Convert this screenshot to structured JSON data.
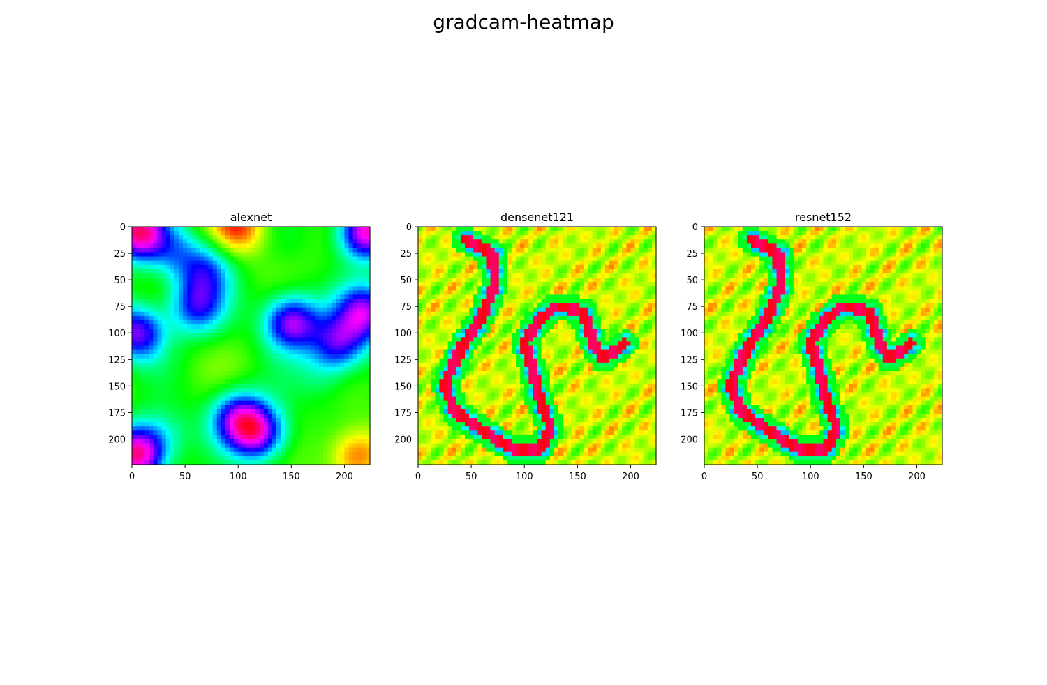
{
  "suptitle": "gradcam-heatmap",
  "chart_data": [
    {
      "type": "heatmap",
      "title": "alexnet",
      "xlim": [
        0,
        224
      ],
      "ylim": [
        224,
        0
      ],
      "xticks": [
        0,
        50,
        100,
        150,
        200
      ],
      "yticks": [
        0,
        25,
        50,
        75,
        100,
        125,
        150,
        175,
        200
      ],
      "colormap": "hsv",
      "grid": false,
      "hotspots": [
        {
          "x": 5,
          "y": 5,
          "v": 0.9
        },
        {
          "x": 220,
          "y": 5,
          "v": 0.88
        },
        {
          "x": 5,
          "y": 100,
          "v": 0.75
        },
        {
          "x": 220,
          "y": 80,
          "v": 0.75
        },
        {
          "x": 60,
          "y": 75,
          "v": 0.65
        },
        {
          "x": 70,
          "y": 40,
          "v": 0.58
        },
        {
          "x": 150,
          "y": 90,
          "v": 0.8
        },
        {
          "x": 195,
          "y": 110,
          "v": 0.68
        },
        {
          "x": 100,
          "y": 180,
          "v": 0.7
        },
        {
          "x": 120,
          "y": 195,
          "v": 0.75
        },
        {
          "x": 100,
          "y": 0,
          "v": 0.05
        },
        {
          "x": 210,
          "y": 215,
          "v": 0.05
        },
        {
          "x": 5,
          "y": 215,
          "v": 0.9
        },
        {
          "x": 30,
          "y": 195,
          "v": 0.45
        },
        {
          "x": 180,
          "y": 140,
          "v": 0.4
        },
        {
          "x": 40,
          "y": 25,
          "v": 0.48
        }
      ]
    },
    {
      "type": "heatmap",
      "title": "densenet121",
      "xlim": [
        0,
        224
      ],
      "ylim": [
        224,
        0
      ],
      "xticks": [
        0,
        50,
        100,
        150,
        200
      ],
      "yticks": [
        0,
        25,
        50,
        75,
        100,
        125,
        150,
        175,
        200
      ],
      "colormap": "hsv",
      "grid": false
    },
    {
      "type": "heatmap",
      "title": "resnet152",
      "xlim": [
        0,
        224
      ],
      "ylim": [
        224,
        0
      ],
      "xticks": [
        0,
        50,
        100,
        150,
        200
      ],
      "yticks": [
        0,
        25,
        50,
        75,
        100,
        125,
        150,
        175,
        200
      ],
      "colormap": "hsv",
      "grid": false
    }
  ],
  "colors": {
    "red": "#ff0000",
    "yellow": "#ffff00",
    "green": "#00ff00",
    "cyan": "#00ffff",
    "blue": "#0000ff",
    "magenta": "#ff00ff",
    "pink": "#ff0066"
  }
}
